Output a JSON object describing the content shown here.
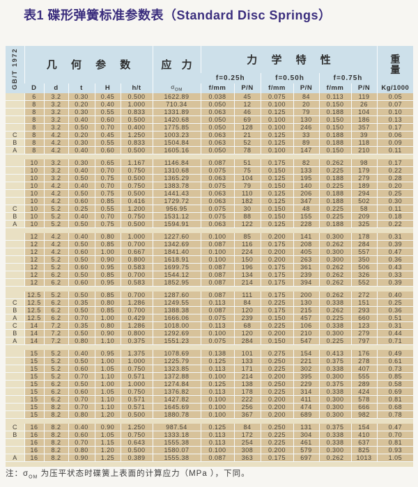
{
  "title": "表1 碟形弹簧标准参数表（Standard Disc Springs）",
  "standard_ref": "GB/T 1972",
  "colors": {
    "title_color": "#3a2d7d",
    "header_bg": "#cde0ea",
    "row_bg": "#d7c29a",
    "spacer_bg": "#e9e0c3"
  },
  "table": {
    "header": {
      "geometry": "几 何 参 数",
      "stress": "应 力",
      "mechanical": "力 学 特 性",
      "weight_char1": "重",
      "weight_char2": "量",
      "deflection_levels": [
        "f=0.25h",
        "f=0.50h",
        "f=0.75h"
      ],
      "col_D": "D",
      "col_d": "d",
      "col_t": "t",
      "col_H": "H",
      "col_ht": "h/t",
      "stress_symbol": "σ",
      "stress_symbol_sub": "OM",
      "col_f": "f/mm",
      "col_p": "P/N",
      "col_weight": "Kg/1000"
    },
    "columns": [
      "type",
      "D",
      "d",
      "t",
      "H",
      "h/t",
      "sigma_OM",
      "f_025h_mm",
      "P_025h_N",
      "f_050h_mm",
      "P_050h_N",
      "f_075h_mm",
      "P_075h_N",
      "weight_kg_per_1000"
    ],
    "groups": [
      {
        "rows": [
          [
            "",
            "6",
            "3.2",
            "0.30",
            "0.45",
            "0.500",
            "1622.89",
            "0.038",
            "45",
            "0.075",
            "84",
            "0.113",
            "119",
            "0.05"
          ],
          [
            "",
            "8",
            "3.2",
            "0.20",
            "0.40",
            "1.000",
            "710.34",
            "0.050",
            "12",
            "0.100",
            "20",
            "0.150",
            "26",
            "0.07"
          ],
          [
            "",
            "8",
            "3.2",
            "0.30",
            "0.55",
            "0.833",
            "1331.89",
            "0.063",
            "46",
            "0.125",
            "79",
            "0.188",
            "104",
            "0.10"
          ],
          [
            "",
            "8",
            "3.2",
            "0.40",
            "0.60",
            "0.500",
            "1420.68",
            "0.050",
            "69",
            "0.100",
            "130",
            "0.150",
            "186",
            "0.13"
          ],
          [
            "",
            "8",
            "3.2",
            "0.50",
            "0.70",
            "0.400",
            "1775.85",
            "0.050",
            "128",
            "0.100",
            "246",
            "0.150",
            "357",
            "0.17"
          ],
          [
            "C",
            "8",
            "4.2",
            "0.20",
            "0.45",
            "1.250",
            "1003.23",
            "0.063",
            "21",
            "0.125",
            "33",
            "0.188",
            "39",
            "0.06"
          ],
          [
            "B",
            "8",
            "4.2",
            "0.30",
            "0.55",
            "0.833",
            "1504.84",
            "0.063",
            "52",
            "0.125",
            "89",
            "0.188",
            "118",
            "0.09"
          ],
          [
            "A",
            "8",
            "4.2",
            "0.40",
            "0.60",
            "0.500",
            "1605.16",
            "0.050",
            "78",
            "0.100",
            "147",
            "0.150",
            "210",
            "0.11"
          ]
        ]
      },
      {
        "rows": [
          [
            "",
            "10",
            "3.2",
            "0.30",
            "0.65",
            "1.167",
            "1146.84",
            "0.087",
            "51",
            "0.175",
            "82",
            "0.262",
            "98",
            "0.17"
          ],
          [
            "",
            "10",
            "3.2",
            "0.40",
            "0.70",
            "0.750",
            "1310.68",
            "0.075",
            "75",
            "0.150",
            "133",
            "0.225",
            "179",
            "0.22"
          ],
          [
            "",
            "10",
            "3.2",
            "0.50",
            "0.75",
            "0.500",
            "1365.29",
            "0.063",
            "104",
            "0.125",
            "195",
            "0.188",
            "279",
            "0.28"
          ],
          [
            "",
            "10",
            "4.2",
            "0.40",
            "0.70",
            "0.750",
            "1383.78",
            "0.075",
            "79",
            "0.150",
            "140",
            "0.225",
            "189",
            "0.20"
          ],
          [
            "",
            "10",
            "4.2",
            "0.50",
            "0.75",
            "0.500",
            "1441.43",
            "0.063",
            "110",
            "0.125",
            "206",
            "0.188",
            "294",
            "0.25"
          ],
          [
            "",
            "10",
            "4.2",
            "0.60",
            "0.85",
            "0.416",
            "1729.72",
            "0.063",
            "182",
            "0.125",
            "347",
            "0.188",
            "502",
            "0.30"
          ],
          [
            "C",
            "10",
            "5.2",
            "0.25",
            "0.55",
            "1.200",
            "956.95",
            "0.075",
            "30",
            "0.150",
            "48",
            "0.225",
            "58",
            "0.11"
          ],
          [
            "B",
            "10",
            "5.2",
            "0.40",
            "0.70",
            "0.750",
            "1531.12",
            "0.075",
            "88",
            "0.150",
            "155",
            "0.225",
            "209",
            "0.18"
          ],
          [
            "A",
            "10",
            "5.2",
            "0.50",
            "0.75",
            "0.500",
            "1594.91",
            "0.063",
            "122",
            "0.125",
            "228",
            "0.188",
            "325",
            "0.22"
          ]
        ]
      },
      {
        "rows": [
          [
            "",
            "12",
            "4.2",
            "0.40",
            "0.80",
            "1.000",
            "1227.60",
            "0.100",
            "85",
            "0.200",
            "141",
            "0.300",
            "178",
            "0.31"
          ],
          [
            "",
            "12",
            "4.2",
            "0.50",
            "0.85",
            "0.700",
            "1342.69",
            "0.087",
            "116",
            "0.175",
            "208",
            "0.262",
            "284",
            "0.39"
          ],
          [
            "",
            "12",
            "4.2",
            "0.60",
            "1.00",
            "0.667",
            "1841.40",
            "0.100",
            "224",
            "0.200",
            "405",
            "0.300",
            "557",
            "0.47"
          ],
          [
            "",
            "12",
            "5.2",
            "0.50",
            "0.90",
            "0.800",
            "1618.91",
            "0.100",
            "150",
            "0.200",
            "263",
            "0.300",
            "350",
            "0.36"
          ],
          [
            "",
            "12",
            "5.2",
            "0.60",
            "0.95",
            "0.583",
            "1699.75",
            "0.087",
            "196",
            "0.175",
            "361",
            "0.262",
            "506",
            "0.43"
          ],
          [
            "",
            "12",
            "6.2",
            "0.50",
            "0.85",
            "0.700",
            "1544.12",
            "0.087",
            "134",
            "0.175",
            "239",
            "0.262",
            "326",
            "0.33"
          ],
          [
            "",
            "12",
            "6.2",
            "0.60",
            "0.95",
            "0.583",
            "1852.95",
            "0.087",
            "214",
            "0.175",
            "394",
            "0.262",
            "552",
            "0.39"
          ]
        ]
      },
      {
        "rows": [
          [
            "",
            "12.5",
            "5.2",
            "0.50",
            "0.85",
            "0.700",
            "1287.60",
            "0.087",
            "111",
            "0.175",
            "200",
            "0.262",
            "272",
            "0.40"
          ],
          [
            "C",
            "12.5",
            "6.2",
            "0.35",
            "0.80",
            "1.286",
            "1249.55",
            "0.113",
            "84",
            "0.225",
            "130",
            "0.338",
            "151",
            "0.25"
          ],
          [
            "B",
            "12.5",
            "6.2",
            "0.50",
            "0.85",
            "0.700",
            "1388.38",
            "0.087",
            "120",
            "0.175",
            "215",
            "0.262",
            "293",
            "0.36"
          ],
          [
            "A",
            "12.5",
            "6.2",
            "0.70",
            "1.00",
            "0.429",
            "1666.06",
            "0.075",
            "239",
            "0.150",
            "457",
            "0.225",
            "660",
            "0.51"
          ],
          [
            "C",
            "14",
            "7.2",
            "0.35",
            "0.80",
            "1.286",
            "1018.00",
            "0.113",
            "68",
            "0.225",
            "106",
            "0.338",
            "123",
            "0.31"
          ],
          [
            "B",
            "14",
            "7.2",
            "0.50",
            "0.90",
            "0.800",
            "1292.69",
            "0.100",
            "120",
            "0.200",
            "210",
            "0.300",
            "279",
            "0.44"
          ],
          [
            "A",
            "14",
            "7.2",
            "0.80",
            "1.10",
            "0.375",
            "1551.23",
            "0.075",
            "284",
            "0.150",
            "547",
            "0.225",
            "797",
            "0.71"
          ]
        ]
      },
      {
        "rows": [
          [
            "",
            "15",
            "5.2",
            "0.40",
            "0.95",
            "1.375",
            "1078.69",
            "0.138",
            "101",
            "0.275",
            "154",
            "0.413",
            "176",
            "0.49"
          ],
          [
            "",
            "15",
            "5.2",
            "0.50",
            "1.00",
            "1.000",
            "1225.79",
            "0.125",
            "133",
            "0.250",
            "221",
            "0.375",
            "278",
            "0.61"
          ],
          [
            "",
            "15",
            "5.2",
            "0.60",
            "1.05",
            "0.750",
            "1323.85",
            "0.113",
            "171",
            "0.225",
            "302",
            "0.338",
            "407",
            "0.73"
          ],
          [
            "",
            "15",
            "5.2",
            "0.70",
            "1.10",
            "0.571",
            "1372.88",
            "0.100",
            "214",
            "0.200",
            "395",
            "0.300",
            "555",
            "0.85"
          ],
          [
            "",
            "15",
            "6.2",
            "0.50",
            "1.00",
            "1.000",
            "1274.84",
            "0.125",
            "138",
            "0.250",
            "229",
            "0.375",
            "289",
            "0.58"
          ],
          [
            "",
            "15",
            "6.2",
            "0.60",
            "1.05",
            "0.750",
            "1376.82",
            "0.113",
            "178",
            "0.225",
            "314",
            "0.338",
            "424",
            "0.69"
          ],
          [
            "",
            "15",
            "6.2",
            "0.70",
            "1.10",
            "0.571",
            "1427.82",
            "0.100",
            "222",
            "0.200",
            "411",
            "0.300",
            "578",
            "0.81"
          ],
          [
            "",
            "15",
            "8.2",
            "0.70",
            "1.10",
            "0.571",
            "1645.69",
            "0.100",
            "256",
            "0.200",
            "474",
            "0.300",
            "666",
            "0.68"
          ],
          [
            "",
            "15",
            "8.2",
            "0.80",
            "1.20",
            "0.500",
            "1880.78",
            "0.100",
            "367",
            "0.200",
            "689",
            "0.300",
            "982",
            "0.78"
          ]
        ]
      },
      {
        "rows": [
          [
            "C",
            "16",
            "8.2",
            "0.40",
            "0.90",
            "1.250",
            "987.54",
            "0.125",
            "84",
            "0.250",
            "131",
            "0.375",
            "154",
            "0.47"
          ],
          [
            "B",
            "16",
            "8.2",
            "0.60",
            "1.05",
            "0.750",
            "1333.18",
            "0.113",
            "172",
            "0.225",
            "304",
            "0.338",
            "410",
            "0.70"
          ],
          [
            "",
            "16",
            "8.2",
            "0.70",
            "1.15",
            "0.643",
            "1555.38",
            "0.113",
            "254",
            "0.225",
            "461",
            "0.338",
            "637",
            "0.81"
          ],
          [
            "",
            "16",
            "8.2",
            "0.80",
            "1.20",
            "0.500",
            "1580.07",
            "0.100",
            "308",
            "0.200",
            "579",
            "0.300",
            "825",
            "0.93"
          ],
          [
            "A",
            "16",
            "8.2",
            "0.90",
            "1.25",
            "0.389",
            "1555.38",
            "0.087",
            "363",
            "0.175",
            "697",
            "0.262",
            "1013",
            "1.05"
          ]
        ]
      }
    ]
  },
  "note": {
    "prefix": "注：",
    "symbol": "σ",
    "symbol_sub": "OM",
    "text": "为压平状态时碟簧上表面的计算应力（MPa ），下同。"
  }
}
